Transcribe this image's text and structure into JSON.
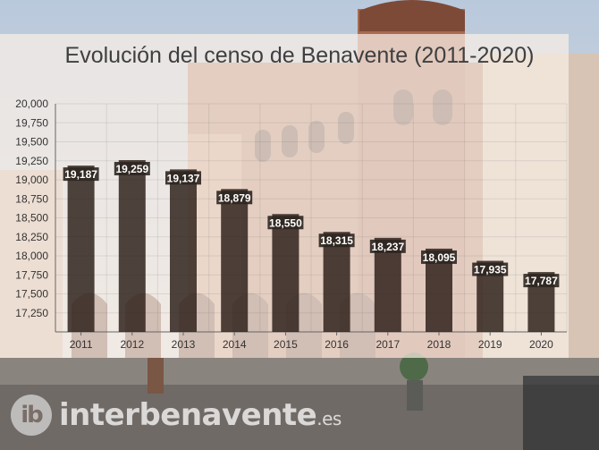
{
  "chart_data": {
    "type": "bar",
    "title": "Evolución del censo de Benavente (2011-2020)",
    "categories": [
      "2011",
      "2012",
      "2013",
      "2014",
      "2015",
      "2016",
      "2017",
      "2018",
      "2019",
      "2020"
    ],
    "values": [
      19187,
      19259,
      19137,
      18879,
      18550,
      18315,
      18237,
      18095,
      17935,
      17787
    ],
    "value_labels": [
      "19,187",
      "19,259",
      "19,137",
      "18,879",
      "18,550",
      "18,315",
      "18,237",
      "18,095",
      "17,935",
      "17,787"
    ],
    "ylim": [
      17000,
      20000
    ],
    "yticks": [
      17250,
      17500,
      17750,
      18000,
      18250,
      18500,
      18750,
      19000,
      19250,
      19500,
      19750,
      20000
    ],
    "ytick_labels": [
      "17,250",
      "17,500",
      "17,750",
      "18,000",
      "18,250",
      "18,500",
      "18,750",
      "19,000",
      "19,250",
      "19,500",
      "19,750",
      "20,000"
    ],
    "grid": true,
    "colors": {
      "bar": "#2a1c16",
      "label_bg": "#2e2620",
      "label_text": "#ffffff",
      "axis_text": "#333333"
    }
  },
  "watermark": {
    "badge": "ib",
    "text": "interbenavente",
    "suffix": ".es"
  }
}
